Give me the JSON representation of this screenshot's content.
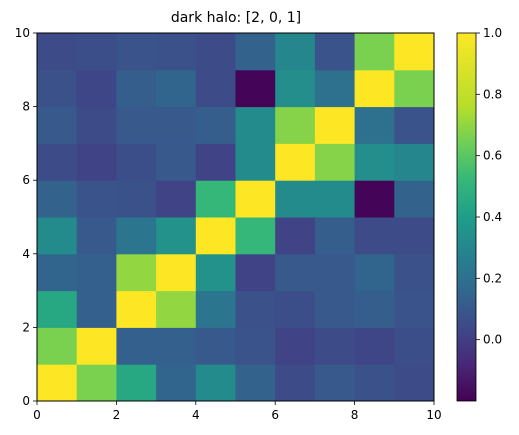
{
  "chart_data": {
    "type": "heatmap",
    "title": "dark halo: [2, 0, 1]",
    "xlabel": "",
    "ylabel": "",
    "xlim": [
      0,
      10
    ],
    "ylim": [
      0,
      10
    ],
    "x_ticks": [
      0,
      2,
      4,
      6,
      8,
      10
    ],
    "y_ticks": [
      0,
      2,
      4,
      6,
      8,
      10
    ],
    "grid": false,
    "origin": "lower",
    "colormap": "viridis",
    "colorbar": {
      "range": [
        -0.2,
        1.0
      ],
      "ticks": [
        0.0,
        0.2,
        0.4,
        0.6,
        0.8,
        1.0
      ],
      "tick_labels": [
        "0.0",
        "0.2",
        "0.4",
        "0.6",
        "0.8",
        "1.0"
      ]
    },
    "rows_bottom_to_top": [
      [
        1.0,
        0.66,
        0.45,
        0.15,
        0.32,
        0.14,
        0.05,
        0.1,
        0.07,
        0.05
      ],
      [
        0.66,
        1.0,
        0.13,
        0.13,
        0.1,
        0.08,
        0.02,
        0.05,
        0.03,
        0.06
      ],
      [
        0.45,
        0.13,
        1.0,
        0.7,
        0.22,
        0.07,
        0.06,
        0.1,
        0.12,
        0.08
      ],
      [
        0.15,
        0.13,
        0.7,
        1.0,
        0.35,
        0.02,
        0.1,
        0.1,
        0.15,
        0.07
      ],
      [
        0.32,
        0.1,
        0.22,
        0.35,
        1.0,
        0.52,
        0.02,
        0.12,
        0.05,
        0.05
      ],
      [
        0.14,
        0.08,
        0.07,
        0.02,
        0.52,
        1.0,
        0.32,
        0.32,
        -0.19,
        0.14
      ],
      [
        0.05,
        0.02,
        0.06,
        0.1,
        0.02,
        0.32,
        1.0,
        0.68,
        0.33,
        0.3
      ],
      [
        0.1,
        0.05,
        0.1,
        0.1,
        0.12,
        0.32,
        0.68,
        1.0,
        0.2,
        0.08
      ],
      [
        0.07,
        0.03,
        0.12,
        0.15,
        0.05,
        -0.19,
        0.33,
        0.2,
        1.0,
        0.66
      ],
      [
        0.05,
        0.06,
        0.08,
        0.07,
        0.05,
        0.14,
        0.3,
        0.08,
        0.66,
        1.0
      ]
    ]
  }
}
